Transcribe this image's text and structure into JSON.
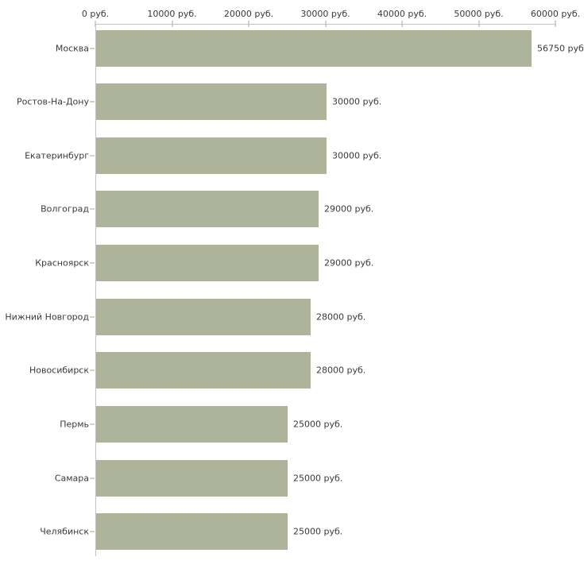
{
  "chart_data": {
    "type": "bar",
    "orientation": "horizontal",
    "title": "",
    "categories": [
      "Москва",
      "Ростов-На-Дону",
      "Екатеринбург",
      "Волгоград",
      "Красноярск",
      "Нижний Новгород",
      "Новосибирск",
      "Пермь",
      "Самара",
      "Челябинск"
    ],
    "values": [
      56750,
      30000,
      30000,
      29000,
      29000,
      28000,
      28000,
      25000,
      25000,
      25000
    ],
    "value_labels": [
      "56750 руб",
      "30000 руб.",
      "30000 руб.",
      "29000 руб.",
      "29000 руб.",
      "28000 руб.",
      "28000 руб.",
      "25000 руб.",
      "25000 руб.",
      "25000 руб."
    ],
    "x_axis": {
      "position": "top",
      "range": [
        0,
        60000
      ],
      "tick_values": [
        0,
        10000,
        20000,
        30000,
        40000,
        50000,
        60000
      ],
      "tick_labels": [
        "0 руб.",
        "10000 руб.",
        "20000 руб.",
        "30000 руб.",
        "40000 руб.",
        "50000 руб.",
        "60000 руб."
      ]
    },
    "grid": false,
    "legend": false,
    "colors": {
      "bar": "#aeb49a",
      "axis": "#c2c2c2",
      "tick": "#d4d6b2",
      "text": "#3a3a3a",
      "background": "#ffffff"
    }
  }
}
